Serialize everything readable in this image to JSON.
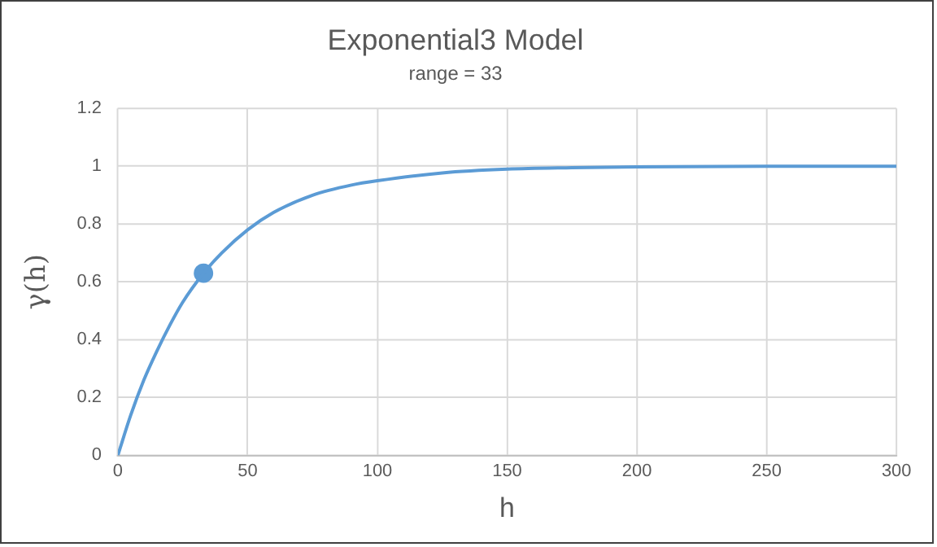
{
  "chart_data": {
    "type": "line",
    "title": "Exponential3 Model",
    "subtitle": "range = 33",
    "xlabel": "h",
    "ylabel": "γ(h)",
    "series": [
      {
        "color": "#5b9bd5",
        "marker": "none",
        "x": [
          0,
          5,
          10,
          15,
          20,
          25,
          33,
          40,
          50,
          60,
          75,
          90,
          100,
          125,
          150,
          175,
          200,
          250,
          300
        ],
        "values": [
          0,
          0.14,
          0.26,
          0.36,
          0.45,
          0.53,
          0.63,
          0.7,
          0.78,
          0.84,
          0.9,
          0.935,
          0.95,
          0.977,
          0.99,
          0.995,
          0.998,
          1.0,
          1.0
        ]
      },
      {
        "type": "scatter",
        "color": "#5b9bd5",
        "marker": "circle",
        "x": [
          33
        ],
        "values": [
          0.63
        ]
      }
    ],
    "xlim": [
      0,
      300
    ],
    "xticks": [
      0,
      50,
      100,
      150,
      200,
      250,
      300
    ],
    "ylim": [
      0,
      1.2
    ],
    "yticks": [
      0,
      0.2,
      0.4,
      0.6,
      0.8,
      1,
      1.2
    ],
    "grid": true,
    "legend": false
  }
}
